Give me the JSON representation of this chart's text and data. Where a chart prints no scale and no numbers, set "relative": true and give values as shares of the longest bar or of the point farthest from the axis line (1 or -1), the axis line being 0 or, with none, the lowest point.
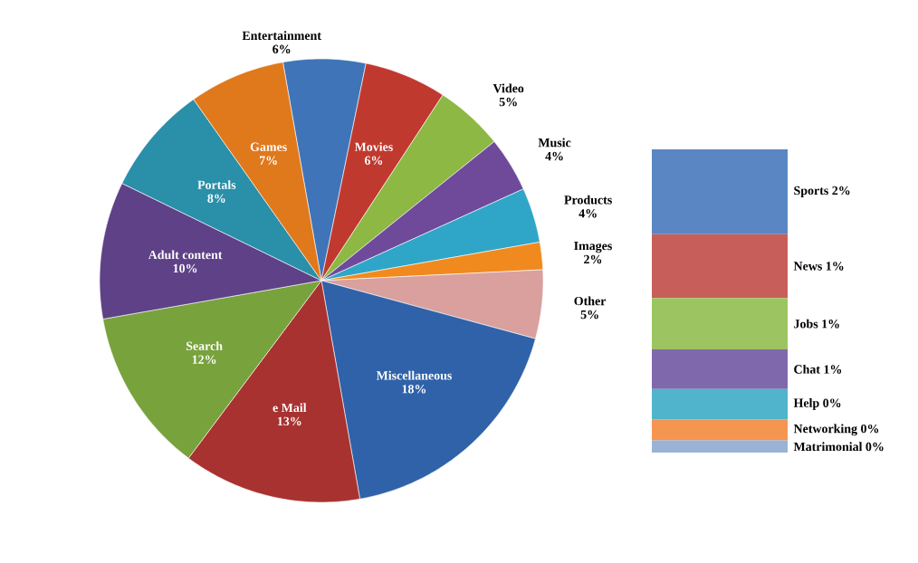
{
  "chart_data": [
    {
      "type": "pie",
      "categories": [
        "Entertainment",
        "Movies",
        "Video",
        "Music",
        "Products",
        "Images",
        "Other",
        "Miscellaneous",
        "e Mail",
        "Search",
        "Adult content",
        "Portals",
        "Games"
      ],
      "values": [
        6,
        6,
        5,
        4,
        4,
        2,
        5,
        18,
        13,
        12,
        10,
        8,
        7
      ],
      "value_labels": [
        "6%",
        "6%",
        "5%",
        "4%",
        "4%",
        "2%",
        "5%",
        "18%",
        "13%",
        "12%",
        "10%",
        "8%",
        "7%"
      ],
      "colors": [
        "#3f74b8",
        "#c0392f",
        "#8db843",
        "#6f4a9a",
        "#2fa6c8",
        "#f08a1e",
        "#d9a09e",
        "#2f62a8",
        "#a83230",
        "#78a23c",
        "#5e4186",
        "#2a8fa8",
        "#e0781c"
      ]
    },
    {
      "type": "bar",
      "stacked": true,
      "relative": true,
      "categories": [
        null
      ],
      "series": [
        {
          "name": "Matrimonial",
          "color": "#9ab2d6",
          "values": [
            0.04
          ]
        },
        {
          "name": "Networking",
          "color": "#f49650",
          "values": [
            0.07
          ]
        },
        {
          "name": "Help",
          "color": "#4fb4cc",
          "values": [
            0.1
          ]
        },
        {
          "name": "Chat",
          "color": "#8068ac",
          "values": [
            0.13
          ]
        },
        {
          "name": "Jobs",
          "color": "#9cc460",
          "values": [
            0.17
          ]
        },
        {
          "name": "News",
          "color": "#c85e5a",
          "values": [
            0.21
          ]
        },
        {
          "name": "Sports",
          "color": "#5a86c4",
          "values": [
            0.28
          ]
        }
      ],
      "annotations": [
        "0%",
        "0%",
        "0%",
        "1%",
        "1%",
        "1%",
        "2%"
      ]
    }
  ]
}
